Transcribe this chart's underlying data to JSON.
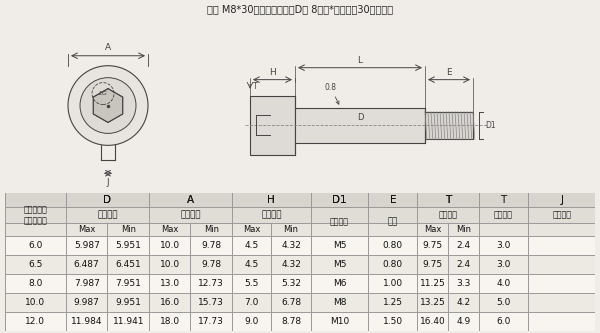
{
  "title": "例： M8*30定元杆直径粗（D） 8毫米*元杆长度30（毫米）",
  "bg_color": "#f0ede8",
  "rows": [
    [
      "6.0",
      "5.987",
      "5.951",
      "10.0",
      "9.78",
      "4.5",
      "4.32",
      "M5",
      "0.80",
      "9.75",
      "2.4",
      "3.0"
    ],
    [
      "6.5",
      "6.487",
      "6.451",
      "10.0",
      "9.78",
      "4.5",
      "4.32",
      "M5",
      "0.80",
      "9.75",
      "2.4",
      "3.0"
    ],
    [
      "8.0",
      "7.987",
      "7.951",
      "13.0",
      "12.73",
      "5.5",
      "5.32",
      "M6",
      "1.00",
      "11.25",
      "3.3",
      "4.0"
    ],
    [
      "10.0",
      "9.987",
      "9.951",
      "16.0",
      "15.73",
      "7.0",
      "6.78",
      "M8",
      "1.25",
      "13.25",
      "4.2",
      "5.0"
    ],
    [
      "12.0",
      "11.984",
      "11.941",
      "18.0",
      "17.73",
      "9.0",
      "8.78",
      "M10",
      "1.50",
      "16.40",
      "4.9",
      "6.0"
    ]
  ],
  "line_color": "#444444",
  "dash_color": "#888888",
  "grid_color": "#999999",
  "header_bg1": "#d8d4ce",
  "header_bg2": "#e0dcd6",
  "header_bg3": "#e8e4de",
  "row_bg_odd": "#f8f5f0",
  "row_bg_even": "#edeae4"
}
